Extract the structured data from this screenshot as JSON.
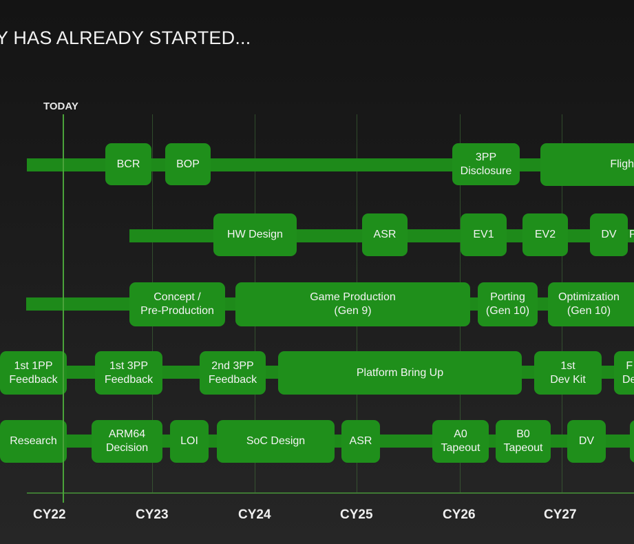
{
  "title": "Y HAS ALREADY STARTED...",
  "today_label": "TODAY",
  "years": [
    "CY22",
    "CY23",
    "CY24",
    "CY25",
    "CY26",
    "CY27"
  ],
  "rows": {
    "row1": [
      "BCR",
      "BOP",
      "3PP\nDisclosure",
      "Fligh"
    ],
    "row2": [
      "HW Design",
      "ASR",
      "EV1",
      "EV2",
      "DV",
      "P"
    ],
    "row3": [
      "Concept /\nPre-Production",
      "Game Production\n(Gen 9)",
      "Porting\n(Gen 10)",
      "Optimization\n(Gen 10)"
    ],
    "row4": [
      "1st 1PP\nFeedback",
      "1st 3PP\nFeedback",
      "2nd 3PP\nFeedback",
      "Platform Bring Up",
      "1st\nDev Kit",
      "F\nDe"
    ],
    "row5": [
      "Research",
      "ARM64\nDecision",
      "LOI",
      "SoC Design",
      "ASR",
      "A0\nTapeout",
      "B0\nTapeout",
      "DV",
      ""
    ]
  },
  "colors": {
    "green": "#1f8f1b",
    "track": "#1e8a1a",
    "today_line": "#4aa33a"
  }
}
